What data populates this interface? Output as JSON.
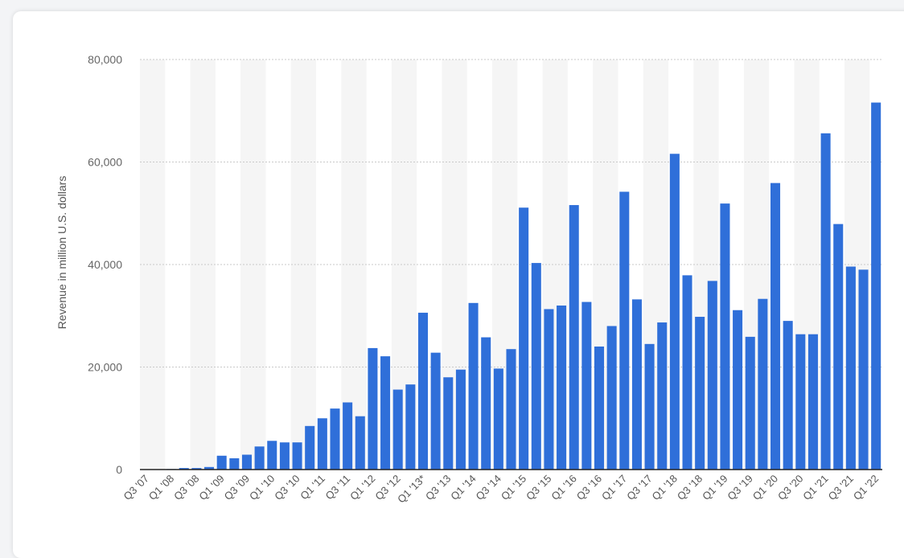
{
  "chart_data": {
    "type": "bar",
    "title": "",
    "xlabel": "",
    "ylabel": "Revenue in million U.S. dollars",
    "ylim": [
      0,
      80000
    ],
    "yticks": [
      0,
      20000,
      40000,
      60000,
      80000
    ],
    "ytick_labels": [
      "0",
      "20,000",
      "40,000",
      "60,000",
      "80,000"
    ],
    "grid": true,
    "colors": {
      "bar": "#2f6fd9",
      "gridline": "#c9c9c9",
      "band": "#f5f5f5",
      "axis": "#222222"
    },
    "categories": [
      "Q3 '07",
      "Q4 '07",
      "Q1 '08",
      "Q2 '08",
      "Q3 '08",
      "Q4 '08",
      "Q1 '09",
      "Q2 '09",
      "Q3 '09",
      "Q4 '09",
      "Q1 '10",
      "Q2 '10",
      "Q3 '10",
      "Q4 '10",
      "Q1 '11",
      "Q2 '11",
      "Q3 '11",
      "Q4 '11",
      "Q1 '12",
      "Q2 '12",
      "Q3 '12",
      "Q4 '12",
      "Q1 '13*",
      "Q2 '13",
      "Q3 '13",
      "Q4 '13",
      "Q1 '14",
      "Q2 '14",
      "Q3 '14",
      "Q4 '14",
      "Q1 '15",
      "Q2 '15",
      "Q3 '15",
      "Q4 '15",
      "Q1 '16",
      "Q2 '16",
      "Q3 '16",
      "Q4 '16",
      "Q1 '17",
      "Q2 '17",
      "Q3 '17",
      "Q4 '17",
      "Q1 '18",
      "Q2 '18",
      "Q3 '18",
      "Q4 '18",
      "Q1 '19",
      "Q2 '19",
      "Q3 '19",
      "Q4 '19",
      "Q1 '20",
      "Q2 '20",
      "Q3 '20",
      "Q4 '20",
      "Q1 '21",
      "Q2 '21",
      "Q3 '21",
      "Q4 '21",
      "Q1 '22"
    ],
    "labeled_categories": [
      "Q3 '07",
      "Q1 '08",
      "Q3 '08",
      "Q1 '09",
      "Q3 '09",
      "Q1 '10",
      "Q3 '10",
      "Q1 '11",
      "Q3 '11",
      "Q1 '12",
      "Q3 '12",
      "Q1 '13*",
      "Q3 '13",
      "Q1 '14",
      "Q3 '14",
      "Q1 '15",
      "Q3 '15",
      "Q1 '16",
      "Q3 '16",
      "Q1 '17",
      "Q3 '17",
      "Q1 '18",
      "Q3 '18",
      "Q1 '19",
      "Q3 '19",
      "Q1 '20",
      "Q3 '20",
      "Q1 '21",
      "Q3 '21",
      "Q1 '22"
    ],
    "values": [
      0,
      0,
      100,
      300,
      300,
      500,
      2700,
      2200,
      2900,
      4500,
      5600,
      5300,
      5300,
      8500,
      10000,
      11900,
      13100,
      10400,
      23700,
      22100,
      15600,
      16600,
      30600,
      22800,
      18000,
      19500,
      32500,
      25800,
      19700,
      23500,
      51100,
      40300,
      31300,
      32000,
      51600,
      32700,
      24000,
      28000,
      54200,
      33200,
      24500,
      28700,
      61600,
      37900,
      29800,
      36800,
      51900,
      31100,
      25900,
      33300,
      55900,
      29000,
      26400,
      26400,
      65600,
      47900,
      39600,
      39000,
      71600
    ]
  }
}
